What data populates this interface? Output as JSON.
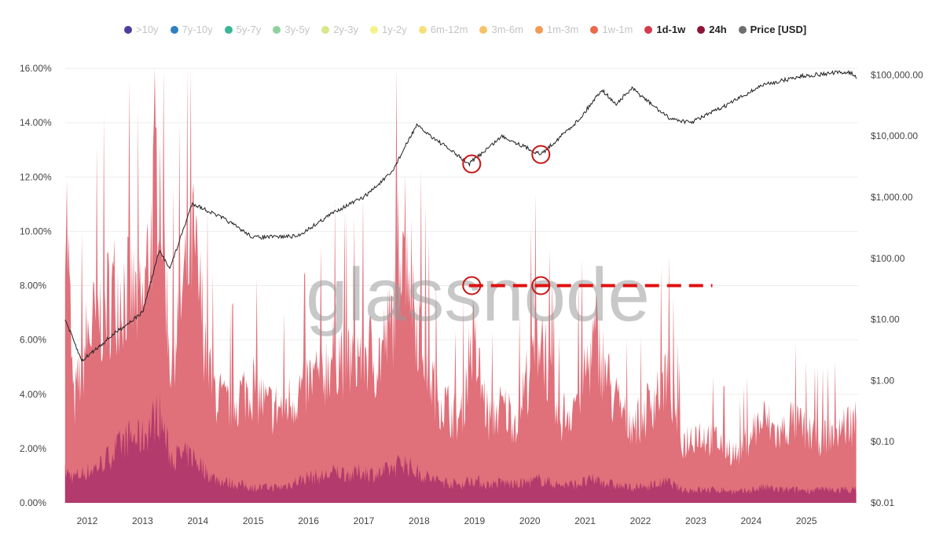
{
  "chart_data": {
    "type": "area",
    "watermark": "glassnode",
    "legend": {
      "placement": "top",
      "items": [
        {
          "label": ">10y",
          "color": "#4b3f9e",
          "active": false
        },
        {
          "label": "7y-10y",
          "color": "#2f7fc1",
          "active": false
        },
        {
          "label": "5y-7y",
          "color": "#3bb59a",
          "active": false
        },
        {
          "label": "3y-5y",
          "color": "#8fd19e",
          "active": false
        },
        {
          "label": "2y-3y",
          "color": "#d6e88a",
          "active": false
        },
        {
          "label": "1y-2y",
          "color": "#f5f28a",
          "active": false
        },
        {
          "label": "6m-12m",
          "color": "#f7e07a",
          "active": false
        },
        {
          "label": "3m-6m",
          "color": "#f6c26b",
          "active": false
        },
        {
          "label": "1m-3m",
          "color": "#f29a56",
          "active": false
        },
        {
          "label": "1w-1m",
          "color": "#ea6a4a",
          "active": false
        },
        {
          "label": "1d-1w",
          "color": "#d43b4d",
          "active": true
        },
        {
          "label": "24h",
          "color": "#8e1538",
          "active": true
        },
        {
          "label": "Price [USD]",
          "color": "#6e6e6e",
          "active": true
        }
      ]
    },
    "x_ticks": [
      "2012",
      "2013",
      "2014",
      "2015",
      "2016",
      "2017",
      "2018",
      "2019",
      "2020",
      "2021",
      "2022",
      "2023",
      "2024",
      "2025"
    ],
    "xlim": [
      2011.6,
      2025.9
    ],
    "y_left": {
      "ticks": [
        "0.00%",
        "2.00%",
        "4.00%",
        "6.00%",
        "8.00%",
        "10.00%",
        "12.00%",
        "14.00%",
        "16.00%"
      ],
      "ylim": [
        0,
        16
      ],
      "unit": "%"
    },
    "y_right": {
      "scale": "log",
      "ticks": [
        "$0.01",
        "$0.10",
        "$1.00",
        "$10.00",
        "$100.00",
        "$1,000.00",
        "$10,000.00",
        "$100,000.00"
      ],
      "ylim": [
        0.01,
        100000
      ]
    },
    "grid": "horizontal",
    "x": [
      2011.6,
      2011.75,
      2012.0,
      2012.25,
      2012.5,
      2012.75,
      2013.0,
      2013.3,
      2013.5,
      2013.9,
      2014.25,
      2014.5,
      2014.75,
      2015.0,
      2015.25,
      2015.5,
      2015.75,
      2016.0,
      2016.25,
      2016.5,
      2016.75,
      2017.0,
      2017.25,
      2017.5,
      2017.7,
      2017.95,
      2018.25,
      2018.5,
      2018.75,
      2018.95,
      2019.25,
      2019.5,
      2019.75,
      2020.2,
      2020.5,
      2020.75,
      2021.0,
      2021.2,
      2021.5,
      2021.75,
      2022.0,
      2022.5,
      2022.75,
      2023.0,
      2023.5,
      2023.75,
      2024.0,
      2024.25,
      2024.5,
      2024.75,
      2025.0,
      2025.25,
      2025.5,
      2025.9
    ],
    "series": [
      {
        "name": "1d-1w",
        "color": "#e0707a",
        "axis": "left",
        "stacked_total": true,
        "values": [
          14,
          4,
          7,
          8,
          9,
          9,
          8,
          15,
          6,
          11,
          5,
          4,
          4.5,
          5,
          4,
          4,
          4.5,
          5,
          5.5,
          6.5,
          6,
          6.5,
          6,
          7.5,
          12.5,
          8,
          5,
          4,
          3.5,
          7,
          3.5,
          4,
          3.5,
          7.5,
          3.5,
          4,
          5.5,
          7,
          4.5,
          3.5,
          3.5,
          5.5,
          2.5,
          3,
          2.5,
          2,
          3,
          3.5,
          2.8,
          3.5,
          3,
          2.8,
          3,
          3.5
        ]
      },
      {
        "name": "24h",
        "color": "#b33a6c",
        "axis": "left",
        "values": [
          1.2,
          1.0,
          1.2,
          1.5,
          2.0,
          2.5,
          2.5,
          3.5,
          1.8,
          1.8,
          1.0,
          0.8,
          0.7,
          0.6,
          0.6,
          0.6,
          0.8,
          1.0,
          1.0,
          1.2,
          1.1,
          1.2,
          1.1,
          1.3,
          1.6,
          1.2,
          0.9,
          0.8,
          0.7,
          0.9,
          0.7,
          0.8,
          0.7,
          0.9,
          0.7,
          0.7,
          0.8,
          0.9,
          0.7,
          0.6,
          0.6,
          0.8,
          0.5,
          0.5,
          0.5,
          0.4,
          0.5,
          0.6,
          0.5,
          0.5,
          0.5,
          0.5,
          0.5,
          0.5
        ]
      },
      {
        "name": "Price [USD]",
        "color": "#222222",
        "axis": "right",
        "x": [
          2011.6,
          2011.9,
          2012.5,
          2013.0,
          2013.3,
          2013.5,
          2013.9,
          2014.5,
          2015.0,
          2015.8,
          2016.5,
          2017.0,
          2017.5,
          2017.95,
          2018.5,
          2018.9,
          2019.5,
          2020.2,
          2020.9,
          2021.3,
          2021.55,
          2021.85,
          2022.5,
          2022.9,
          2023.5,
          2024.2,
          2024.9,
          2025.5,
          2025.8,
          2025.9
        ],
        "values": [
          10,
          2.1,
          6,
          13,
          130,
          70,
          800,
          430,
          220,
          230,
          600,
          1000,
          2500,
          15000,
          6500,
          3500,
          10000,
          5000,
          19000,
          58000,
          33000,
          60000,
          20000,
          16500,
          30000,
          68000,
          95000,
          108000,
          110000,
          90000
        ]
      }
    ],
    "annotations": {
      "circles": [
        {
          "x": 2018.95,
          "on": "price",
          "value": 3500
        },
        {
          "x": 2020.2,
          "on": "price",
          "value": 5000
        },
        {
          "x": 2018.95,
          "on": "left",
          "value": 8
        },
        {
          "x": 2020.2,
          "on": "left",
          "value": 8
        }
      ],
      "dashed_line": {
        "value": 8,
        "x_from": 2018.9,
        "x_to": 2023.3,
        "color": "#e01010"
      }
    }
  }
}
